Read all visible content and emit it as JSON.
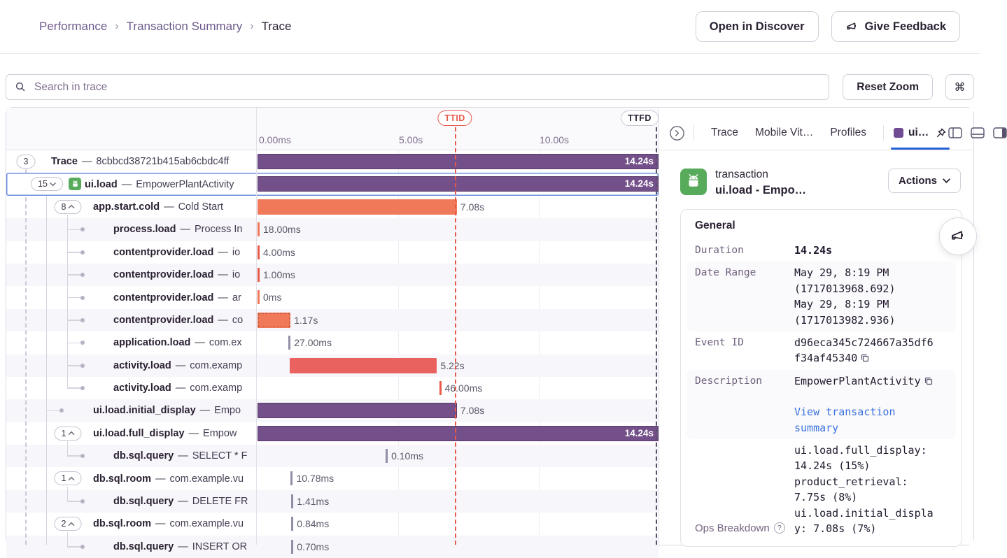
{
  "header": {
    "breadcrumb": [
      "Performance",
      "Transaction Summary",
      "Trace"
    ],
    "separator": "›",
    "open_in_discover": "Open in Discover",
    "give_feedback": "Give Feedback"
  },
  "toolbar": {
    "search_placeholder": "Search in trace",
    "reset_zoom": "Reset Zoom",
    "shortcut": "⌘"
  },
  "trace": {
    "axis": [
      "0.00ms",
      "5.00s",
      "10.00s"
    ],
    "ttid": "TTID",
    "ttfd": "TTFD",
    "rows": [
      {
        "badge": "3",
        "depth": 0,
        "op": "Trace",
        "desc": "8cbbcd38721b415ab6cbdc4ff",
        "bar": {
          "kind": "bar",
          "color": "purple",
          "start": 0,
          "dur": 14.24,
          "label": "14.24s",
          "inside": true
        }
      },
      {
        "badge": "15",
        "chev": "down",
        "depth": 1,
        "android_icon": true,
        "selected": true,
        "op": "ui.load",
        "desc": "EmpowerPlantActivity",
        "bar": {
          "kind": "bar",
          "color": "purple",
          "start": 0,
          "dur": 14.24,
          "label": "14.24s",
          "inside": true
        }
      },
      {
        "badge": "8",
        "chev": "up",
        "depth": 2,
        "op": "app.start.cold",
        "desc": "Cold Start",
        "bar": {
          "kind": "bar",
          "color": "orange",
          "start": 0,
          "dur": 7.08,
          "label": "7.08s"
        }
      },
      {
        "dot": true,
        "depth": 3,
        "op": "process.load",
        "desc": "Process In",
        "bar": {
          "kind": "tick",
          "color": "orange",
          "start": 0,
          "label": "18.00ms"
        }
      },
      {
        "dot": true,
        "depth": 3,
        "op": "contentprovider.load",
        "desc": "io",
        "bar": {
          "kind": "tick",
          "color": "red",
          "start": 0,
          "label": "4.00ms"
        }
      },
      {
        "dot": true,
        "depth": 3,
        "op": "contentprovider.load",
        "desc": "io",
        "bar": {
          "kind": "tick",
          "color": "red",
          "start": 0,
          "label": "1.00ms"
        }
      },
      {
        "dot": true,
        "depth": 3,
        "op": "contentprovider.load",
        "desc": "ar",
        "bar": {
          "kind": "tick",
          "color": "orange",
          "start": 0,
          "label": "0ms"
        }
      },
      {
        "dot": true,
        "depth": 3,
        "op": "contentprovider.load",
        "desc": "co",
        "bar": {
          "kind": "bar",
          "color": "orange",
          "dashed": true,
          "start": 0,
          "dur": 1.17,
          "label": "1.17s"
        }
      },
      {
        "dot": true,
        "depth": 3,
        "op": "application.load",
        "desc": "com.ex",
        "bar": {
          "kind": "tick",
          "color": "gray",
          "start": 1.1,
          "label": "27.00ms"
        }
      },
      {
        "dot": true,
        "depth": 3,
        "op": "activity.load",
        "desc": "com.examp",
        "bar": {
          "kind": "bar",
          "color": "redorange",
          "start": 1.15,
          "dur": 5.22,
          "label": "5.22s"
        }
      },
      {
        "dot": true,
        "depth": 3,
        "op": "activity.load",
        "desc": "com.examp",
        "bar": {
          "kind": "tick",
          "color": "red",
          "start": 6.45,
          "label": "46.00ms"
        }
      },
      {
        "dot": true,
        "depth": 2,
        "op": "ui.load.initial_display",
        "desc": "Empo",
        "bar": {
          "kind": "bar",
          "color": "purple",
          "start": 0,
          "dur": 7.08,
          "label": "7.08s"
        }
      },
      {
        "badge": "1",
        "chev": "up",
        "depth": 2,
        "op": "ui.load.full_display",
        "desc": "Empow",
        "bar": {
          "kind": "bar",
          "color": "purple",
          "start": 0,
          "dur": 14.24,
          "label": "14.24s",
          "inside": true
        }
      },
      {
        "dot": true,
        "depth": 3,
        "op": "db.sql.query",
        "desc": "SELECT * F",
        "bar": {
          "kind": "tick",
          "color": "gray",
          "start": 4.55,
          "label": "0.10ms"
        }
      },
      {
        "badge": "1",
        "chev": "up",
        "depth": 2,
        "op": "db.sql.room",
        "desc": "com.example.vu",
        "bar": {
          "kind": "tick",
          "color": "gray",
          "start": 1.18,
          "label": "10.78ms"
        }
      },
      {
        "dot": true,
        "depth": 3,
        "op": "db.sql.query",
        "desc": "DELETE FR",
        "bar": {
          "kind": "tick",
          "color": "gray",
          "start": 1.2,
          "label": "1.41ms"
        }
      },
      {
        "badge": "2",
        "chev": "up",
        "depth": 2,
        "op": "db.sql.room",
        "desc": "com.example.vu",
        "bar": {
          "kind": "tick",
          "color": "gray",
          "start": 1.2,
          "label": "0.84ms"
        }
      },
      {
        "dot": true,
        "depth": 3,
        "op": "db.sql.query",
        "desc": "INSERT OR",
        "bar": {
          "kind": "tick",
          "color": "gray",
          "start": 1.2,
          "label": "0.70ms"
        }
      }
    ]
  },
  "panel": {
    "tabs": {
      "items": [
        "Trace",
        "Mobile Vit…",
        "Profiles"
      ],
      "active": "ui…"
    },
    "transaction": {
      "kind": "transaction",
      "name": "ui.load - Empo…",
      "actions": "Actions"
    },
    "general": {
      "title": "General",
      "fields": [
        {
          "label": "Duration",
          "values": [
            {
              "text": "14.24s",
              "bold": true
            }
          ]
        },
        {
          "label": "Date Range",
          "striped": true,
          "values": [
            {
              "text": "May 29, 8:19 PM (1717013968.692)"
            },
            {
              "text": "May 29, 8:19 PM (1717013982.936)"
            }
          ]
        },
        {
          "label": "Event ID",
          "values": [
            {
              "text": "d96eca345c724667a35df6f34af45340",
              "copy": true
            }
          ]
        },
        {
          "label": "Description",
          "striped": true,
          "values": [
            {
              "text": "EmpowerPlantActivity",
              "copy": true
            },
            {
              "text": "View transaction summary",
              "link": true,
              "spaced": true
            }
          ]
        },
        {
          "label": "Ops Breakdown",
          "sans_label": true,
          "help": true,
          "label_bottom": true,
          "values": [
            {
              "text": "ui.load.full_display: 14.24s (15%)"
            },
            {
              "text": "product_retrieval: 7.75s (8%)"
            },
            {
              "text": "ui.load.initial_display: 7.08s (7%)"
            }
          ]
        }
      ]
    }
  }
}
